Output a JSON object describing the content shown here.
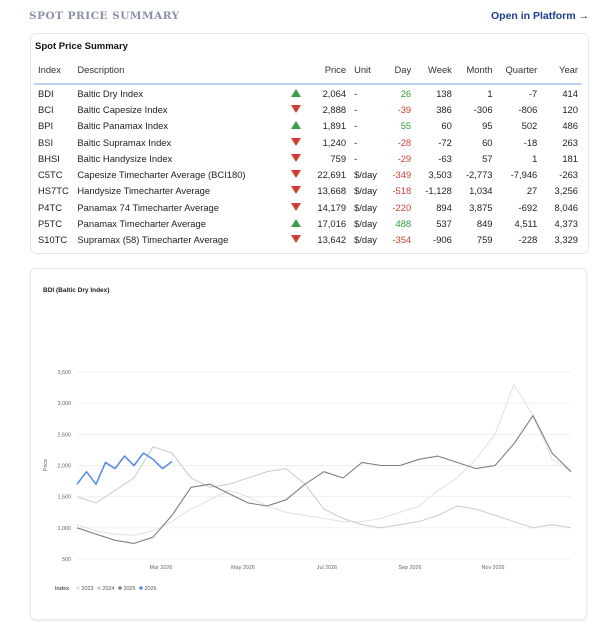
{
  "header": {
    "title": "SPOT PRICE SUMMARY",
    "link_label": "Open in Platform →"
  },
  "summary": {
    "title": "Spot Price Summary",
    "columns": [
      "Index",
      "Description",
      "Price",
      "Unit",
      "Day",
      "Week",
      "Month",
      "Quarter",
      "Year"
    ],
    "rows": [
      {
        "index": "BDI",
        "description": "Baltic Dry Index",
        "trend": "up",
        "price": "2,064",
        "unit": "-",
        "day": "26",
        "week": "138",
        "month": "1",
        "quarter": "-7",
        "year": "414"
      },
      {
        "index": "BCI",
        "description": "Baltic Capesize Index",
        "trend": "down",
        "price": "2,888",
        "unit": "-",
        "day": "-39",
        "week": "386",
        "month": "-306",
        "quarter": "-806",
        "year": "120"
      },
      {
        "index": "BPI",
        "description": "Baltic Panamax Index",
        "trend": "up",
        "price": "1,891",
        "unit": "-",
        "day": "55",
        "week": "60",
        "month": "95",
        "quarter": "502",
        "year": "486"
      },
      {
        "index": "BSI",
        "description": "Baltic Supramax Index",
        "trend": "down",
        "price": "1,240",
        "unit": "-",
        "day": "-28",
        "week": "-72",
        "month": "60",
        "quarter": "-18",
        "year": "263"
      },
      {
        "index": "BHSI",
        "description": "Baltic Handysize Index",
        "trend": "down",
        "price": "759",
        "unit": "-",
        "day": "-29",
        "week": "-63",
        "month": "57",
        "quarter": "1",
        "year": "181"
      },
      {
        "index": "C5TC",
        "description": "Capesize Timecharter Average (BCI180)",
        "trend": "down",
        "price": "22,691",
        "unit": "$/day",
        "day": "-349",
        "week": "3,503",
        "month": "-2,773",
        "quarter": "-7,946",
        "year": "-263"
      },
      {
        "index": "HS7TC",
        "description": "Handysize Timecharter Average",
        "trend": "down",
        "price": "13,668",
        "unit": "$/day",
        "day": "-518",
        "week": "-1,128",
        "month": "1,034",
        "quarter": "27",
        "year": "3,256"
      },
      {
        "index": "P4TC",
        "description": "Panamax 74 Timecharter Average",
        "trend": "down",
        "price": "14,179",
        "unit": "$/day",
        "day": "-220",
        "week": "894",
        "month": "3,875",
        "quarter": "-692",
        "year": "8,046"
      },
      {
        "index": "P5TC",
        "description": "Panamax Timecharter Average",
        "trend": "up",
        "price": "17,016",
        "unit": "$/day",
        "day": "488",
        "week": "537",
        "month": "849",
        "quarter": "4,511",
        "year": "4,373"
      },
      {
        "index": "S10TC",
        "description": "Supramax (58) Timecharter Average",
        "trend": "down",
        "price": "13,642",
        "unit": "$/day",
        "day": "-354",
        "week": "-906",
        "month": "759",
        "quarter": "-228",
        "year": "3,329"
      }
    ]
  },
  "chart_data": {
    "type": "line",
    "title": "BDI (Baltic Dry Index)",
    "ylabel": "Price",
    "xlabel": "",
    "ylim": [
      500,
      3500
    ],
    "yticks": [
      "500",
      "1,000",
      "1,500",
      "2,000",
      "2,500",
      "3,000",
      "3,500"
    ],
    "xticks": [
      "Mar 2026",
      "May 2026",
      "Jul 2026",
      "Sep 2026",
      "Nov 2026"
    ],
    "legend_title": "Index",
    "x_range": [
      0,
      52
    ],
    "series": [
      {
        "name": "2023",
        "color": "#e3e3e3",
        "x": [
          0,
          2,
          4,
          6,
          8,
          10,
          12,
          14,
          16,
          18,
          20,
          22,
          24,
          26,
          28,
          30,
          32,
          34,
          36,
          38,
          40,
          42,
          44,
          46,
          48,
          50,
          52
        ],
        "values": [
          1050,
          950,
          900,
          880,
          950,
          1100,
          1300,
          1450,
          1600,
          1500,
          1350,
          1250,
          1200,
          1150,
          1100,
          1100,
          1150,
          1250,
          1350,
          1600,
          1800,
          2100,
          2500,
          3300,
          2800,
          2100,
          1900
        ]
      },
      {
        "name": "2024",
        "color": "#cfcfcf",
        "x": [
          0,
          2,
          4,
          6,
          8,
          10,
          12,
          14,
          16,
          18,
          20,
          22,
          24,
          26,
          28,
          30,
          32,
          34,
          36,
          38,
          40,
          42,
          44,
          46,
          48,
          50,
          52
        ],
        "values": [
          1500,
          1400,
          1600,
          1800,
          2300,
          2200,
          1800,
          1650,
          1700,
          1800,
          1900,
          1950,
          1700,
          1300,
          1150,
          1050,
          1000,
          1050,
          1100,
          1200,
          1350,
          1300,
          1200,
          1100,
          1000,
          1050,
          1000
        ]
      },
      {
        "name": "2025",
        "color": "#7f7f7f",
        "x": [
          0,
          2,
          4,
          6,
          8,
          10,
          12,
          14,
          16,
          18,
          20,
          22,
          24,
          26,
          28,
          30,
          32,
          34,
          36,
          38,
          40,
          42,
          44,
          46,
          48,
          50,
          52
        ],
        "values": [
          1000,
          900,
          800,
          750,
          850,
          1200,
          1650,
          1700,
          1550,
          1400,
          1350,
          1450,
          1700,
          1900,
          1800,
          2050,
          2000,
          2000,
          2100,
          2150,
          2050,
          1950,
          2000,
          2350,
          2800,
          2200,
          1900
        ]
      },
      {
        "name": "2026",
        "color": "#5b8de6",
        "x": [
          0,
          1,
          2,
          3,
          4,
          5,
          6,
          7,
          8,
          9,
          10
        ],
        "values": [
          1700,
          1900,
          1700,
          2050,
          1950,
          2150,
          2000,
          2200,
          2100,
          1950,
          2064
        ]
      }
    ]
  }
}
